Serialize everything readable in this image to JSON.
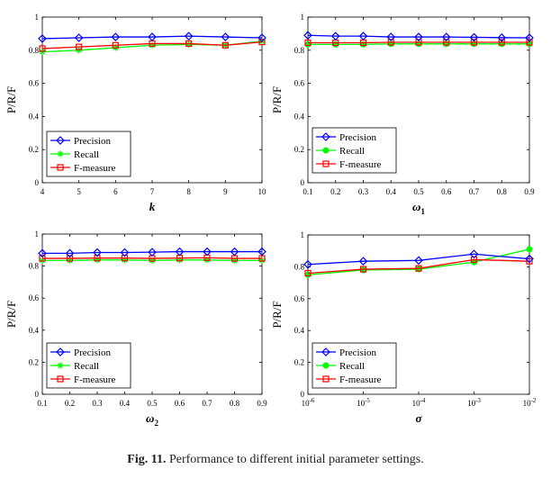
{
  "caption": {
    "label": "Fig. 11.",
    "text": "Performance to different initial parameter settings."
  },
  "colors": {
    "precision": "#0000ff",
    "recall": "#00ff00",
    "fmeasure": "#ff0000"
  },
  "chart_data": [
    {
      "type": "line",
      "xlabel": "k",
      "ylabel": "P/R/F",
      "x": [
        4,
        5,
        6,
        7,
        8,
        9,
        10
      ],
      "xticks": [
        "4",
        "5",
        "6",
        "7",
        "8",
        "9",
        "10"
      ],
      "xlim": [
        4,
        10
      ],
      "ylim": [
        0,
        1
      ],
      "yticks": [
        "0",
        "0.2",
        "0.4",
        "0.6",
        "0.8",
        "1"
      ],
      "legend": "bottom-left",
      "series": [
        {
          "name": "Precision",
          "values": [
            0.87,
            0.875,
            0.88,
            0.88,
            0.885,
            0.88,
            0.875
          ]
        },
        {
          "name": "Recall",
          "values": [
            0.79,
            0.8,
            0.815,
            0.83,
            0.835,
            0.83,
            0.855
          ]
        },
        {
          "name": "F-measure",
          "values": [
            0.81,
            0.82,
            0.83,
            0.84,
            0.84,
            0.83,
            0.85
          ]
        }
      ]
    },
    {
      "type": "line",
      "xlabel": "ω1",
      "ylabel": "P/R/F",
      "x": [
        0.1,
        0.2,
        0.3,
        0.4,
        0.5,
        0.6,
        0.7,
        0.8,
        0.9
      ],
      "xticks": [
        "0.1",
        "0.2",
        "0.3",
        "0.4",
        "0.5",
        "0.6",
        "0.7",
        "0.8",
        "0.9"
      ],
      "xlim": [
        0.1,
        0.9
      ],
      "ylim": [
        0,
        1
      ],
      "yticks": [
        "0",
        "0.2",
        "0.4",
        "0.6",
        "0.8",
        "1"
      ],
      "legend": "bottom-left",
      "series": [
        {
          "name": "Precision",
          "values": [
            0.89,
            0.885,
            0.885,
            0.88,
            0.88,
            0.88,
            0.878,
            0.876,
            0.875
          ]
        },
        {
          "name": "Recall",
          "values": [
            0.835,
            0.835,
            0.835,
            0.838,
            0.838,
            0.838,
            0.838,
            0.838,
            0.838
          ]
        },
        {
          "name": "F-measure",
          "values": [
            0.845,
            0.845,
            0.845,
            0.848,
            0.848,
            0.848,
            0.848,
            0.848,
            0.848
          ]
        }
      ]
    },
    {
      "type": "line",
      "xlabel": "ω2",
      "ylabel": "P/R/F",
      "x": [
        0.1,
        0.2,
        0.3,
        0.4,
        0.5,
        0.6,
        0.7,
        0.8,
        0.9
      ],
      "xticks": [
        "0.1",
        "0.2",
        "0.3",
        "0.4",
        "0.5",
        "0.6",
        "0.7",
        "0.8",
        "0.9"
      ],
      "xlim": [
        0.1,
        0.9
      ],
      "ylim": [
        0,
        1
      ],
      "yticks": [
        "0",
        "0.2",
        "0.4",
        "0.6",
        "0.8",
        "1"
      ],
      "legend": "bottom-left",
      "series": [
        {
          "name": "Precision",
          "values": [
            0.88,
            0.88,
            0.885,
            0.885,
            0.887,
            0.89,
            0.89,
            0.89,
            0.89
          ]
        },
        {
          "name": "Recall",
          "values": [
            0.835,
            0.835,
            0.838,
            0.838,
            0.835,
            0.838,
            0.838,
            0.835,
            0.835
          ]
        },
        {
          "name": "F-measure",
          "values": [
            0.848,
            0.848,
            0.85,
            0.85,
            0.848,
            0.85,
            0.852,
            0.848,
            0.848
          ]
        }
      ]
    },
    {
      "type": "line",
      "xlabel": "σ",
      "ylabel": "P/R/F",
      "xscale": "log",
      "x": [
        1e-06,
        1e-05,
        0.0001,
        0.001,
        0.01
      ],
      "xticks": [
        "10^-6",
        "10^-5",
        "10^-4",
        "10^-3",
        "10^-2"
      ],
      "xlim": [
        1e-06,
        0.01
      ],
      "ylim": [
        0,
        1
      ],
      "yticks": [
        "0",
        "0.2",
        "0.4",
        "0.6",
        "0.8",
        "1"
      ],
      "legend": "bottom-left",
      "series": [
        {
          "name": "Precision",
          "values": [
            0.815,
            0.835,
            0.84,
            0.88,
            0.85
          ]
        },
        {
          "name": "Recall",
          "values": [
            0.75,
            0.78,
            0.785,
            0.83,
            0.91
          ]
        },
        {
          "name": "F-measure",
          "values": [
            0.76,
            0.785,
            0.79,
            0.845,
            0.835
          ]
        }
      ]
    }
  ]
}
